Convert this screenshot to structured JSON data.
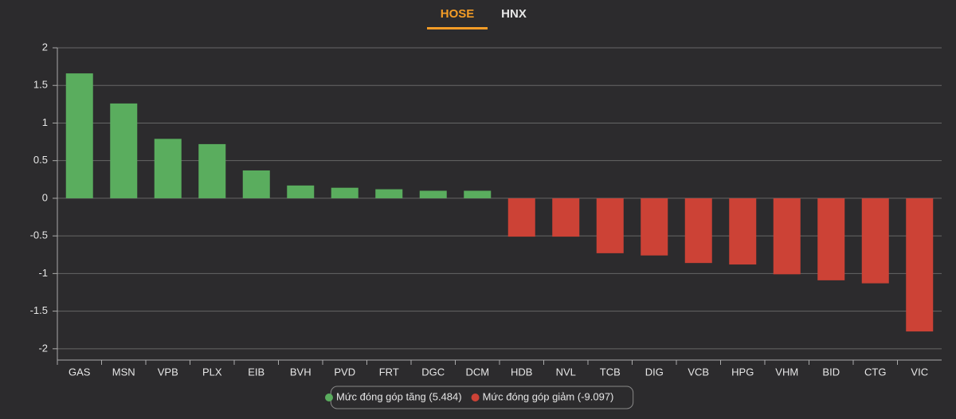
{
  "tabs": [
    "HOSE",
    "HNX"
  ],
  "active_tab": 0,
  "chart_data": {
    "type": "bar",
    "categories": [
      "GAS",
      "MSN",
      "VPB",
      "PLX",
      "EIB",
      "BVH",
      "PVD",
      "FRT",
      "DGC",
      "DCM",
      "HDB",
      "NVL",
      "TCB",
      "DIG",
      "VCB",
      "HPG",
      "VHM",
      "BID",
      "CTG",
      "VIC"
    ],
    "series": [
      {
        "name": "Mức đóng góp tăng (5.484)",
        "color": "#5aad5e",
        "values": [
          1.66,
          1.26,
          0.79,
          0.72,
          0.37,
          0.17,
          0.14,
          0.12,
          0.1,
          0.1,
          null,
          null,
          null,
          null,
          null,
          null,
          null,
          null,
          null,
          null
        ]
      },
      {
        "name": "Mức đóng góp giảm (-9.097)",
        "color": "#cc4236",
        "values": [
          null,
          null,
          null,
          null,
          null,
          null,
          null,
          null,
          null,
          null,
          -0.51,
          -0.51,
          -0.73,
          -0.76,
          -0.86,
          -0.88,
          -1.01,
          -1.09,
          -1.13,
          -1.77
        ]
      }
    ],
    "ylim": [
      -2.15,
      2
    ],
    "yticks": [
      2,
      1.5,
      1,
      0.5,
      0,
      -0.5,
      -1,
      -1.5,
      -2
    ],
    "grid": true,
    "legend": "bottom"
  }
}
